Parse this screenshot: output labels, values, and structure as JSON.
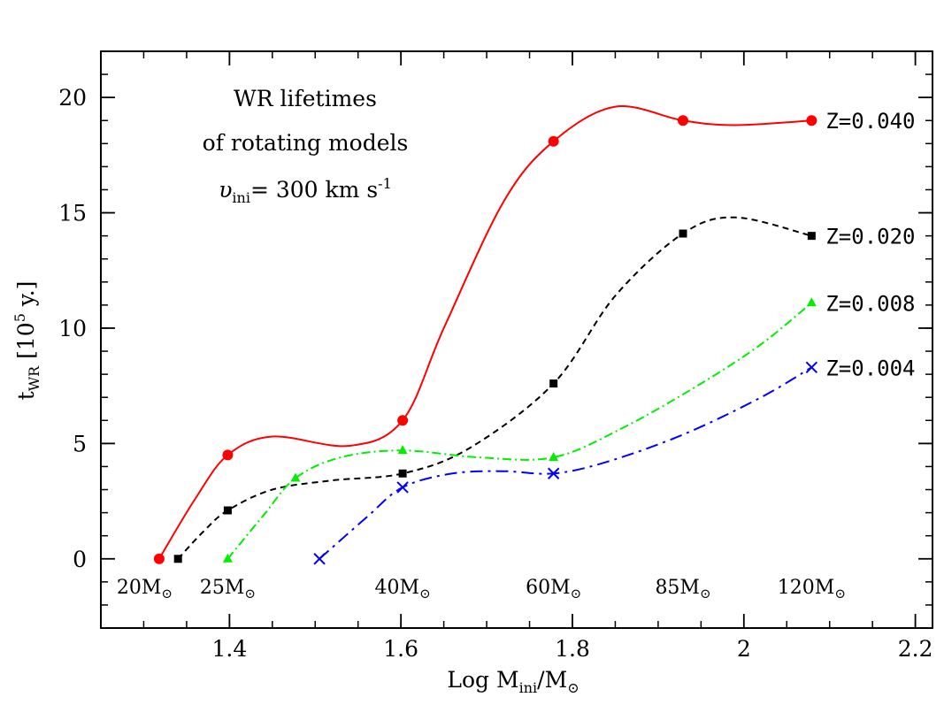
{
  "chart_data": {
    "type": "line",
    "title_lines": [
      "WR lifetimes",
      "of rotating models"
    ],
    "velocity": {
      "symbol": "υ",
      "subscript": "ini",
      "value_text": "= 300 km s",
      "superscript": "-1"
    },
    "xlabel": {
      "prefix": "Log M",
      "subscript": "ini",
      "suffix": "/M",
      "sun": "⊙"
    },
    "ylabel": {
      "prefix": "t",
      "subscript": "WR",
      "mid": " [10",
      "superscript": "5",
      "suffix": " y.]"
    },
    "xlim": [
      1.25,
      2.22
    ],
    "ylim": [
      -3,
      22
    ],
    "x_ticks": [
      1.4,
      1.6,
      1.8,
      2,
      2.2
    ],
    "x_tick_labels": [
      "1.4",
      "1.6",
      "1.8",
      "2",
      "2.2"
    ],
    "x_minor_step": 0.05,
    "y_ticks": [
      0,
      5,
      10,
      15,
      20
    ],
    "y_tick_labels": [
      "0",
      "5",
      "10",
      "15",
      "20"
    ],
    "y_minor_step": 1,
    "mass_labels": [
      {
        "text": "20M",
        "x": 1.301
      },
      {
        "text": "25M",
        "x": 1.398
      },
      {
        "text": "40M",
        "x": 1.602
      },
      {
        "text": "60M",
        "x": 1.778
      },
      {
        "text": "85M",
        "x": 1.929
      },
      {
        "text": "120M",
        "x": 2.079
      }
    ],
    "series": [
      {
        "name": "Z=0.040",
        "color": "#ff0000",
        "dash": "",
        "marker": "circle",
        "points": [
          [
            1.318,
            0
          ],
          [
            1.398,
            4.5
          ],
          [
            1.602,
            6.0
          ],
          [
            1.778,
            18.1
          ],
          [
            1.929,
            19.0
          ],
          [
            2.079,
            19.0
          ]
        ],
        "curve": [
          [
            1.318,
            0
          ],
          [
            1.36,
            2.6
          ],
          [
            1.398,
            4.5
          ],
          [
            1.45,
            5.3
          ],
          [
            1.54,
            4.9
          ],
          [
            1.602,
            6.0
          ],
          [
            1.65,
            10.0
          ],
          [
            1.72,
            15.5
          ],
          [
            1.778,
            18.1
          ],
          [
            1.85,
            19.6
          ],
          [
            1.929,
            19.0
          ],
          [
            1.99,
            18.8
          ],
          [
            2.079,
            19.0
          ]
        ]
      },
      {
        "name": "Z=0.020",
        "color": "#000000",
        "dash": "7,5",
        "marker": "square",
        "points": [
          [
            1.34,
            0
          ],
          [
            1.398,
            2.1
          ],
          [
            1.602,
            3.7
          ],
          [
            1.778,
            7.6
          ],
          [
            1.929,
            14.1
          ],
          [
            2.079,
            14.0
          ]
        ],
        "curve": [
          [
            1.34,
            0
          ],
          [
            1.37,
            1.2
          ],
          [
            1.398,
            2.1
          ],
          [
            1.45,
            3.0
          ],
          [
            1.52,
            3.4
          ],
          [
            1.602,
            3.7
          ],
          [
            1.68,
            4.8
          ],
          [
            1.778,
            7.6
          ],
          [
            1.85,
            11.4
          ],
          [
            1.929,
            14.1
          ],
          [
            1.99,
            14.8
          ],
          [
            2.079,
            14.0
          ]
        ]
      },
      {
        "name": "Z=0.008",
        "color": "#00ee00",
        "dash": "10,4,2,4",
        "marker": "triangle",
        "points": [
          [
            1.398,
            0
          ],
          [
            1.477,
            3.5
          ],
          [
            1.602,
            4.7
          ],
          [
            1.778,
            4.4
          ],
          [
            2.079,
            11.1
          ]
        ],
        "curve": [
          [
            1.398,
            0
          ],
          [
            1.44,
            1.9
          ],
          [
            1.477,
            3.5
          ],
          [
            1.53,
            4.4
          ],
          [
            1.602,
            4.7
          ],
          [
            1.69,
            4.4
          ],
          [
            1.778,
            4.4
          ],
          [
            1.86,
            5.7
          ],
          [
            1.95,
            7.6
          ],
          [
            2.02,
            9.3
          ],
          [
            2.079,
            11.1
          ]
        ]
      },
      {
        "name": "Z=0.004",
        "color": "#0000ff",
        "dash": "14,6,3,6",
        "marker": "cross",
        "points": [
          [
            1.505,
            0
          ],
          [
            1.602,
            3.1
          ],
          [
            1.778,
            3.7
          ],
          [
            2.079,
            8.3
          ]
        ],
        "curve": [
          [
            1.505,
            0
          ],
          [
            1.56,
            1.8
          ],
          [
            1.602,
            3.1
          ],
          [
            1.66,
            3.7
          ],
          [
            1.72,
            3.8
          ],
          [
            1.778,
            3.7
          ],
          [
            1.84,
            4.2
          ],
          [
            1.93,
            5.4
          ],
          [
            2.02,
            7.0
          ],
          [
            2.079,
            8.3
          ]
        ]
      }
    ]
  }
}
